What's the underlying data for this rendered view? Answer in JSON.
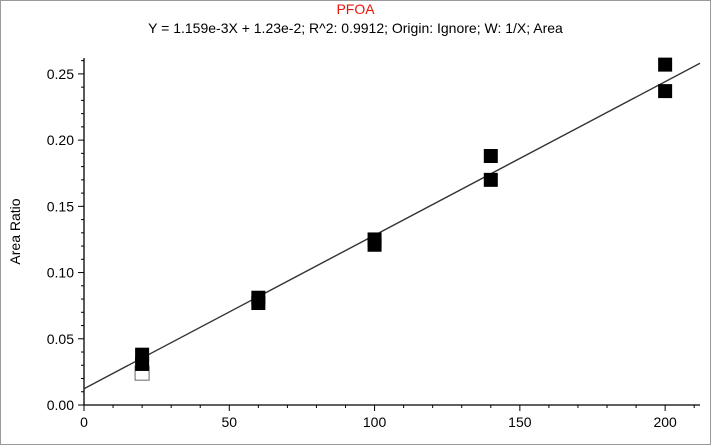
{
  "chart_data": {
    "type": "scatter",
    "title": "PFOA",
    "subtitle": "Y = 1.159e-3X + 1.23e-2; R^2: 0.9912; Origin: Ignore; W: 1/X; Area",
    "xlabel": "",
    "ylabel": "Area Ratio",
    "xlim": [
      0,
      212
    ],
    "ylim": [
      0,
      0.262
    ],
    "xticks": [
      0,
      50,
      100,
      150,
      200
    ],
    "xtick_labels": [
      "0",
      "50",
      "100",
      "150",
      "200"
    ],
    "yticks": [
      0,
      0.05,
      0.1,
      0.15,
      0.2,
      0.25
    ],
    "ytick_labels": [
      "0.00",
      "0.05",
      "0.10",
      "0.15",
      "0.20",
      "0.25"
    ],
    "grid": false,
    "fit_line": {
      "slope": 0.001159,
      "intercept": 0.0123,
      "x_range": [
        0,
        212
      ]
    },
    "series": [
      {
        "marker": "filled-square",
        "color": "#000000",
        "points": [
          {
            "x": 20,
            "y": 0.038
          },
          {
            "x": 20,
            "y": 0.031
          },
          {
            "x": 60,
            "y": 0.081
          },
          {
            "x": 60,
            "y": 0.077
          },
          {
            "x": 100,
            "y": 0.125
          },
          {
            "x": 100,
            "y": 0.121
          },
          {
            "x": 140,
            "y": 0.188
          },
          {
            "x": 140,
            "y": 0.17
          },
          {
            "x": 200,
            "y": 0.257
          },
          {
            "x": 200,
            "y": 0.237
          }
        ]
      },
      {
        "marker": "open-square",
        "color": "#808080",
        "points": [
          {
            "x": 20,
            "y": 0.024
          }
        ]
      }
    ]
  }
}
